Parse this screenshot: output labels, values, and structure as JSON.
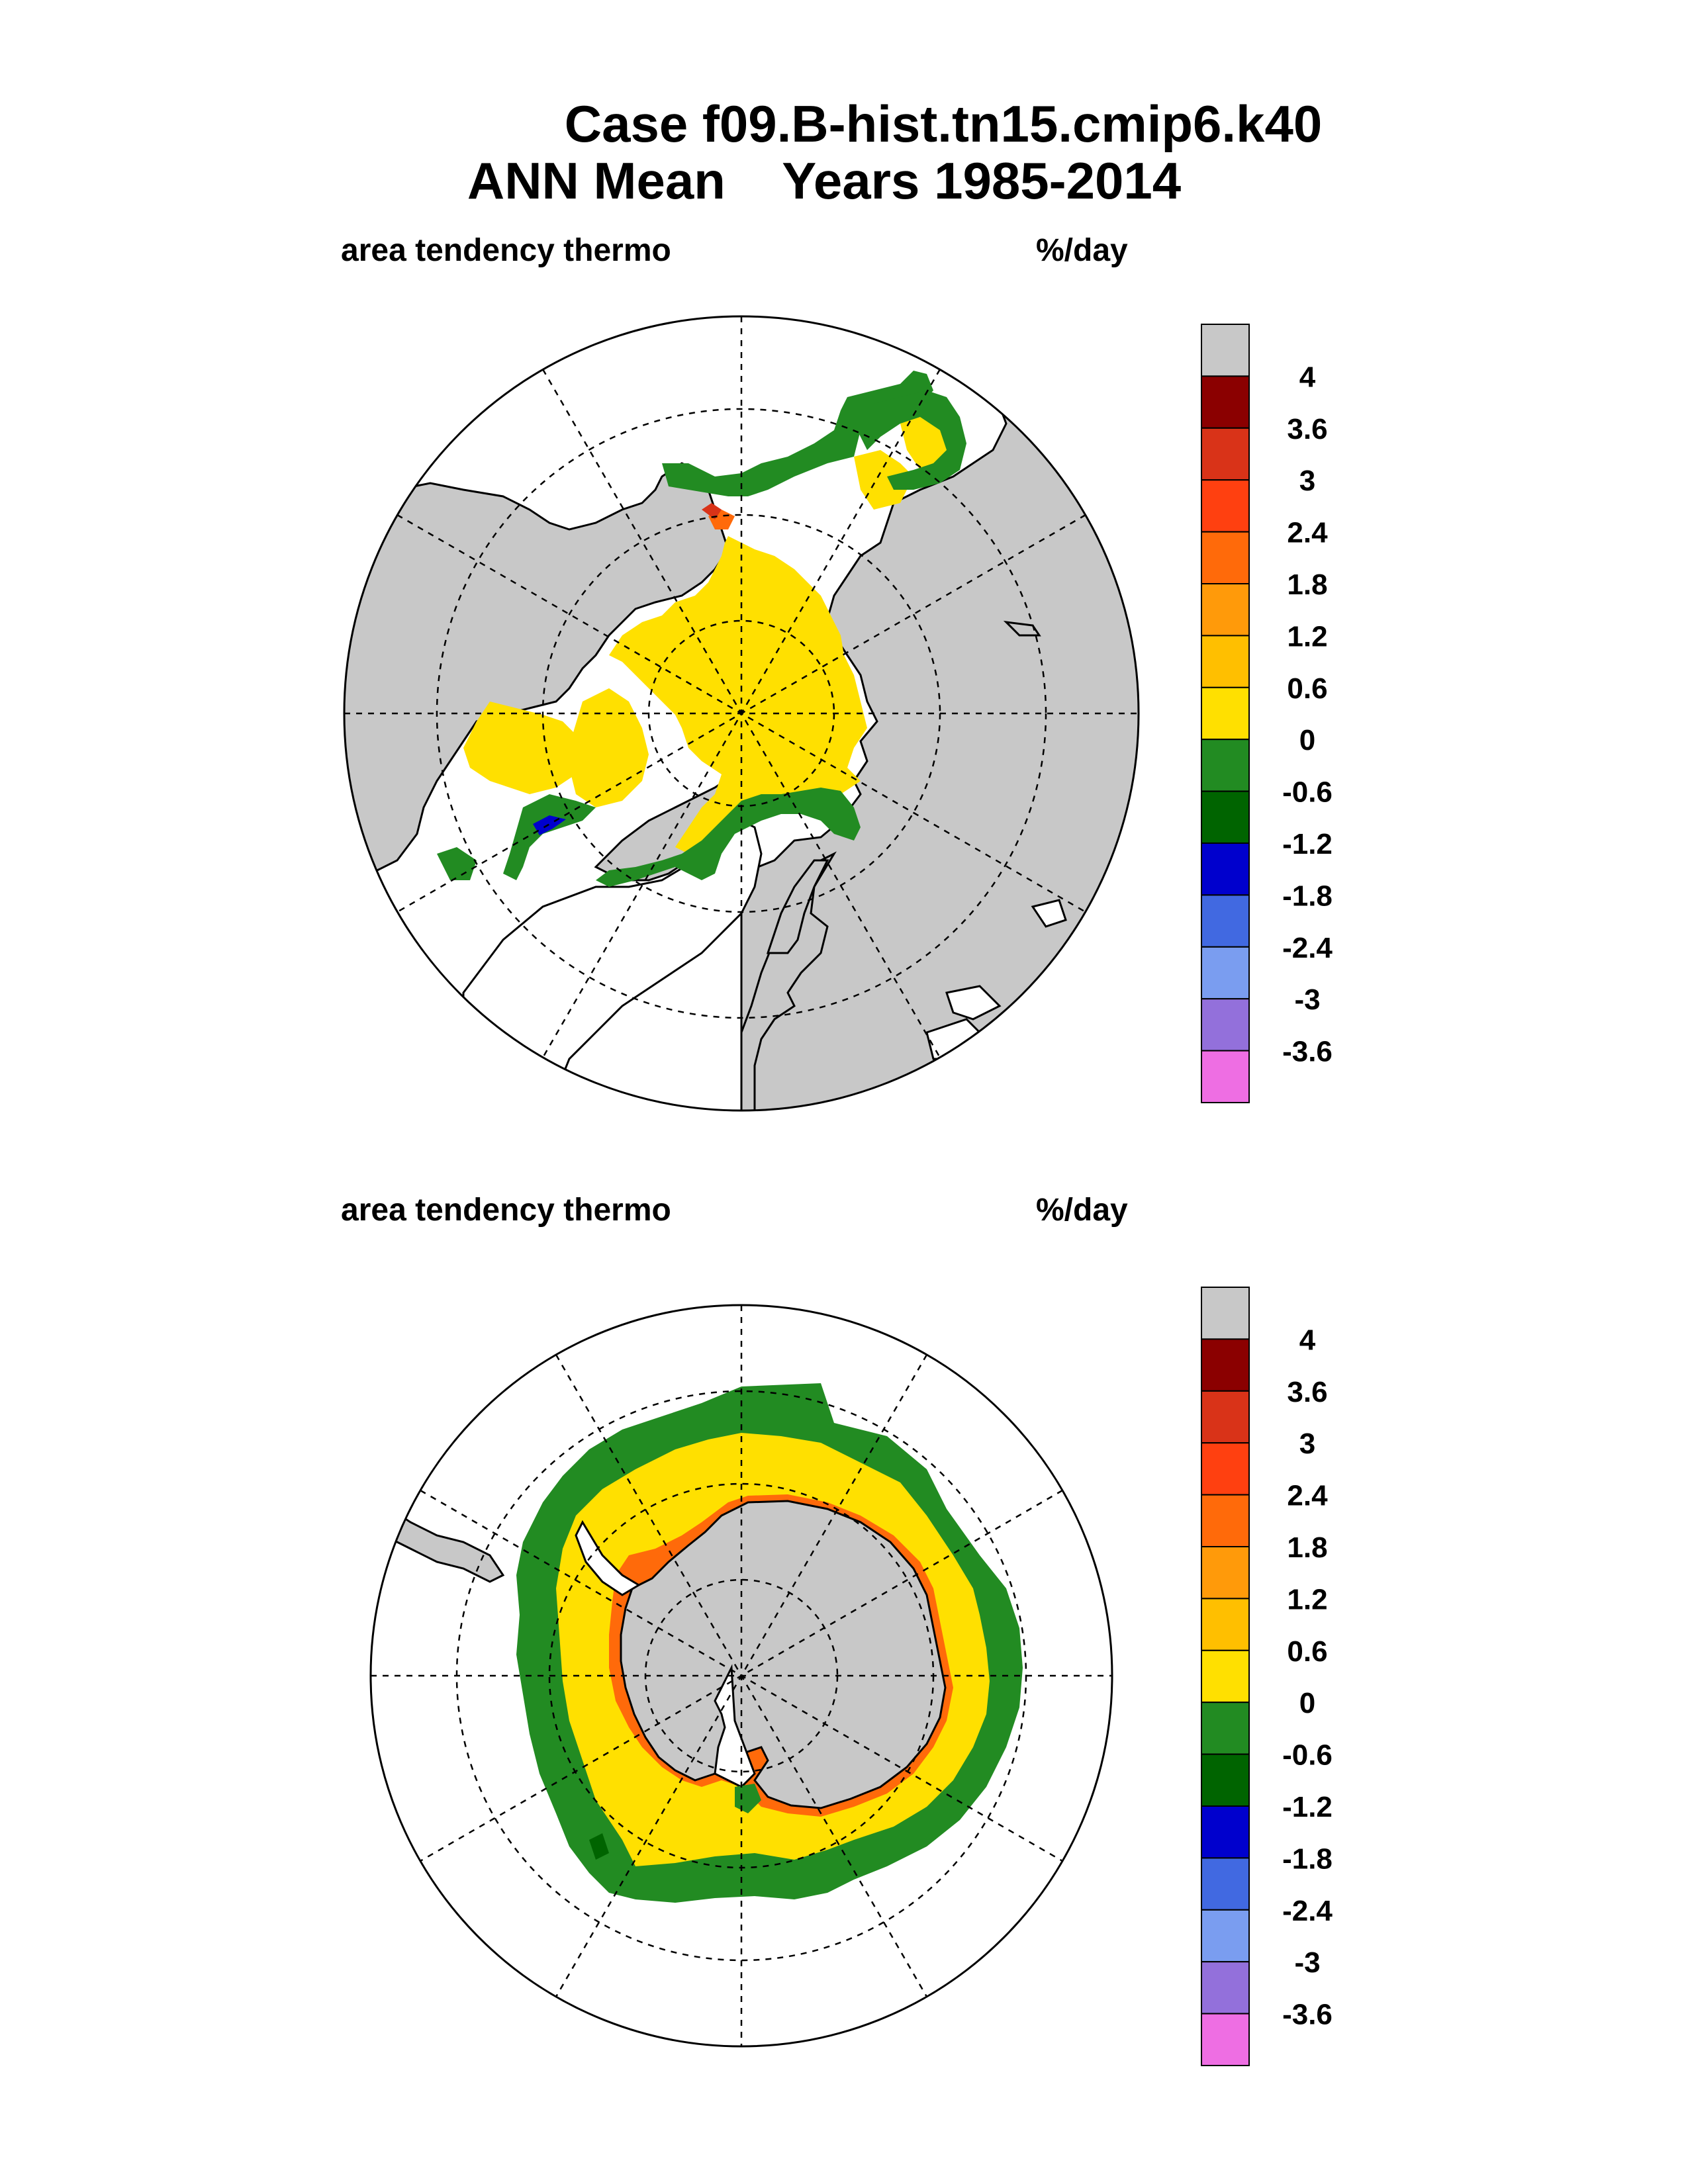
{
  "header": {
    "line1": "Case f09.B-hist.tn15.cmip6.k40",
    "line2": "ANN Mean    Years 1985-2014"
  },
  "panels": [
    {
      "id": "north",
      "title": "area tendency thermo",
      "units": "%/day"
    },
    {
      "id": "south",
      "title": "area tendency thermo",
      "units": "%/day"
    }
  ],
  "legend": {
    "colors": [
      "#c8c8c8",
      "#8b0000",
      "#d93318",
      "#ff4010",
      "#ff6a0a",
      "#ff9a0a",
      "#ffbf00",
      "#ffe000",
      "#228b22",
      "#006400",
      "#0000cd",
      "#4169e1",
      "#7a9df0",
      "#9370db",
      "#ee6ee3"
    ],
    "labels": [
      "4",
      "3.6",
      "3",
      "2.4",
      "1.8",
      "1.2",
      "0.6",
      "0",
      "-0.6",
      "-1.2",
      "-1.8",
      "-2.4",
      "-3",
      "-3.6"
    ]
  },
  "colors": {
    "land": "#c8c8c8",
    "ice_yellow": "#ffe000",
    "ice_green": "#228b22",
    "ice_darkgreen": "#006400",
    "edge_orange": "#ff6a0a",
    "edge_red": "#d93318",
    "blue": "#0000cd"
  }
}
